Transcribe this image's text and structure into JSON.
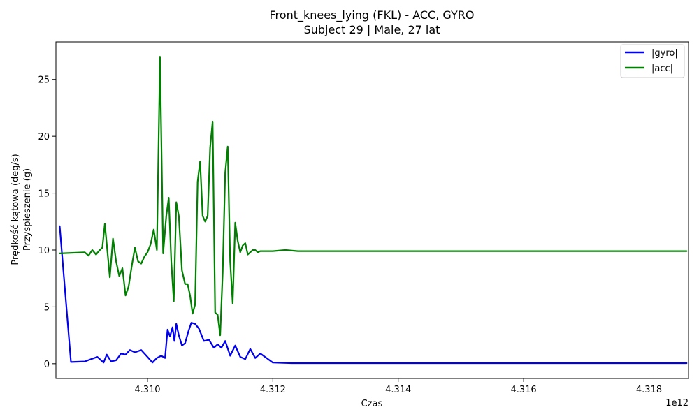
{
  "chart_data": {
    "type": "line",
    "title": "Front_knees_lying (FKL) - ACC, GYRO",
    "subtitle": "Subject 29 | Male, 27 lat",
    "xlabel": "Czas",
    "ylabel_lines": [
      "Prędkość kątowa (deg/s)",
      "Przyspieszenie (g)"
    ],
    "x_offset_label": "1e12",
    "xlim": [
      4.30854,
      4.31863
    ],
    "ylim": [
      -1.3,
      28.3
    ],
    "x_ticks": [
      4.31,
      4.312,
      4.314,
      4.316,
      4.318
    ],
    "x_tick_labels": [
      "4.310",
      "4.312",
      "4.314",
      "4.316",
      "4.318"
    ],
    "y_ticks": [
      0,
      5,
      10,
      15,
      20,
      25
    ],
    "y_tick_labels": [
      "0",
      "5",
      "10",
      "15",
      "20",
      "25"
    ],
    "legend_position": "top-right",
    "series": [
      {
        "name": "|gyro|",
        "color": "#0000ee",
        "x": [
          4.3086,
          4.30878,
          4.309,
          4.3091,
          4.3092,
          4.3093,
          4.30935,
          4.30942,
          4.3095,
          4.30958,
          4.30965,
          4.30972,
          4.3098,
          4.3099,
          4.31,
          4.31008,
          4.31015,
          4.31022,
          4.31028,
          4.31032,
          4.31036,
          4.3104,
          4.31043,
          4.31046,
          4.3105,
          4.31055,
          4.3106,
          4.31065,
          4.3107,
          4.31076,
          4.31082,
          4.3109,
          4.31098,
          4.31106,
          4.31112,
          4.31118,
          4.31124,
          4.31132,
          4.3114,
          4.31148,
          4.31156,
          4.31164,
          4.31172,
          4.3118,
          4.312,
          4.3123,
          4.313,
          4.314,
          4.315,
          4.316,
          4.317,
          4.318,
          4.3186
        ],
        "y": [
          12.1,
          0.15,
          0.2,
          0.4,
          0.6,
          0.1,
          0.8,
          0.2,
          0.3,
          0.9,
          0.8,
          1.2,
          1.0,
          1.2,
          0.6,
          0.1,
          0.5,
          0.7,
          0.5,
          3.0,
          2.4,
          3.2,
          2.0,
          3.5,
          2.5,
          1.6,
          1.8,
          2.8,
          3.6,
          3.5,
          3.1,
          2.0,
          2.1,
          1.4,
          1.7,
          1.4,
          2.0,
          0.7,
          1.6,
          0.6,
          0.4,
          1.3,
          0.5,
          0.9,
          0.1,
          0.05,
          0.05,
          0.05,
          0.05,
          0.05,
          0.05,
          0.05,
          0.05
        ]
      },
      {
        "name": "|acc|",
        "color": "#008000",
        "x": [
          4.3086,
          4.309,
          4.30906,
          4.30912,
          4.30918,
          4.30924,
          4.30928,
          4.30932,
          4.3094,
          4.30945,
          4.3095,
          4.30955,
          4.3096,
          4.30965,
          4.3097,
          4.30975,
          4.3098,
          4.30985,
          4.3099,
          4.30995,
          4.31,
          4.31005,
          4.3101,
          4.31015,
          4.3102,
          4.31025,
          4.3103,
          4.31034,
          4.31038,
          4.31042,
          4.31046,
          4.3105,
          4.31055,
          4.3106,
          4.31064,
          4.31068,
          4.31072,
          4.31076,
          4.3108,
          4.31084,
          4.31088,
          4.31092,
          4.31096,
          4.311,
          4.31104,
          4.31108,
          4.31112,
          4.31116,
          4.3112,
          4.31124,
          4.31128,
          4.31132,
          4.31136,
          4.3114,
          4.31144,
          4.31148,
          4.31152,
          4.31156,
          4.3116,
          4.31164,
          4.31168,
          4.31172,
          4.31176,
          4.3118,
          4.312,
          4.3122,
          4.3124,
          4.313,
          4.314,
          4.315,
          4.316,
          4.317,
          4.318,
          4.3186
        ],
        "y": [
          9.7,
          9.8,
          9.5,
          10.0,
          9.6,
          10.0,
          10.2,
          12.3,
          7.6,
          11.0,
          9.0,
          7.7,
          8.4,
          6.0,
          6.8,
          8.6,
          10.2,
          9.0,
          8.8,
          9.4,
          9.8,
          10.5,
          11.8,
          10.0,
          27.0,
          9.7,
          13.0,
          14.6,
          9.0,
          5.5,
          14.2,
          13.0,
          8.2,
          7.0,
          7.0,
          6.0,
          4.4,
          5.2,
          16.0,
          17.8,
          13.0,
          12.5,
          13.0,
          19.0,
          21.3,
          4.5,
          4.3,
          2.5,
          8.0,
          16.8,
          19.1,
          9.0,
          5.3,
          12.4,
          10.8,
          9.8,
          10.4,
          10.6,
          9.6,
          9.8,
          10.0,
          10.0,
          9.8,
          9.9,
          9.9,
          10.0,
          9.9,
          9.9,
          9.9,
          9.9,
          9.9,
          9.9,
          9.9,
          9.9
        ]
      }
    ]
  }
}
